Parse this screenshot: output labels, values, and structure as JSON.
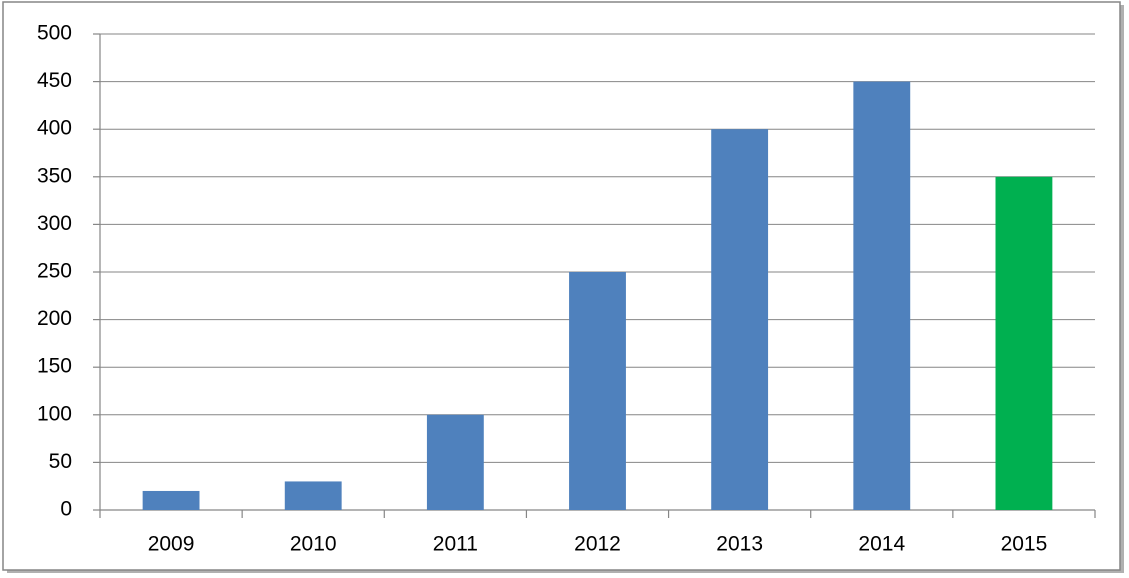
{
  "chart_data": {
    "type": "bar",
    "categories": [
      "2009",
      "2010",
      "2011",
      "2012",
      "2013",
      "2014",
      "2015"
    ],
    "values": [
      20,
      30,
      100,
      250,
      400,
      450,
      350
    ],
    "colors": [
      "#4f81bd",
      "#4f81bd",
      "#4f81bd",
      "#4f81bd",
      "#4f81bd",
      "#4f81bd",
      "#00b050"
    ],
    "ylim": [
      0,
      500
    ],
    "yticks": [
      0,
      50,
      100,
      150,
      200,
      250,
      300,
      350,
      400,
      450,
      500
    ],
    "grid": true
  }
}
